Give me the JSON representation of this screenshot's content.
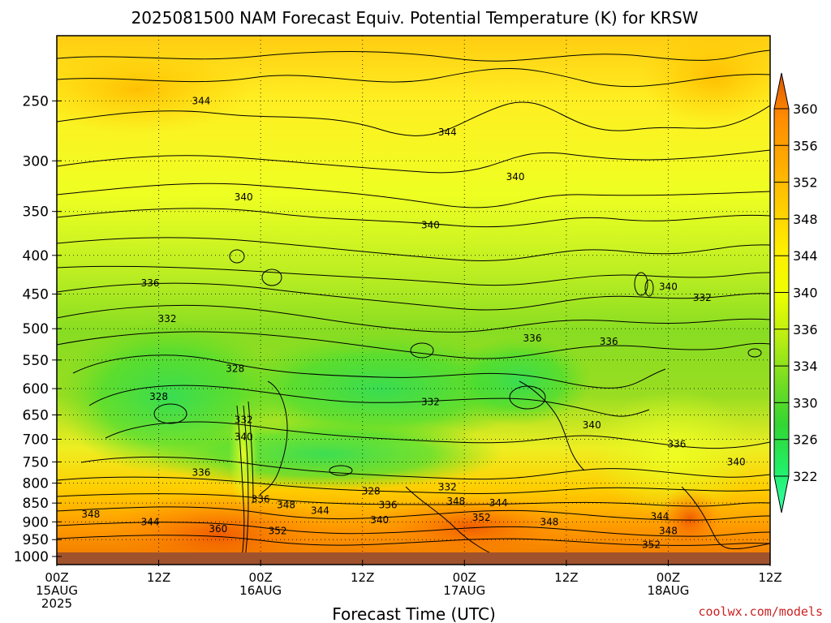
{
  "chart_data": {
    "type": "heatmap",
    "title": "2025081500 NAM Forecast Equiv. Potential Temperature (K) for KRSW",
    "xlabel": "Forecast Time (UTC)",
    "ylabel": "",
    "variable_units": "K",
    "y_axis": {
      "scale": "log",
      "reversed": true,
      "range": [
        1025,
        205
      ],
      "ticks": [
        250,
        300,
        350,
        400,
        450,
        500,
        550,
        600,
        650,
        700,
        750,
        800,
        850,
        900,
        950,
        1000
      ]
    },
    "x_axis": {
      "range_hours": [
        0,
        84
      ],
      "ticks": [
        {
          "hour": 0,
          "lines": [
            "00Z",
            "15AUG",
            "2025"
          ]
        },
        {
          "hour": 12,
          "lines": [
            "12Z"
          ]
        },
        {
          "hour": 24,
          "lines": [
            "00Z",
            "16AUG"
          ]
        },
        {
          "hour": 36,
          "lines": [
            "12Z"
          ]
        },
        {
          "hour": 48,
          "lines": [
            "00Z",
            "17AUG"
          ]
        },
        {
          "hour": 60,
          "lines": [
            "12Z"
          ]
        },
        {
          "hour": 72,
          "lines": [
            "00Z",
            "18AUG"
          ]
        },
        {
          "hour": 84,
          "lines": [
            "12Z"
          ]
        }
      ]
    },
    "grid": true,
    "colorbar": {
      "placement": "right",
      "ticks": [
        322,
        326,
        330,
        334,
        336,
        340,
        344,
        348,
        352,
        356,
        360
      ],
      "colors": [
        "#33ff99",
        "#22e866",
        "#33d633",
        "#77dd22",
        "#bbee11",
        "#eeff00",
        "#ffee00",
        "#ffcc00",
        "#ffaa00",
        "#ff8c00",
        "#ee6600",
        "#cc4400"
      ]
    },
    "contour_labels": [
      {
        "value": "344",
        "hour": 17,
        "p": 250
      },
      {
        "value": "344",
        "hour": 46,
        "p": 275
      },
      {
        "value": "340",
        "hour": 22,
        "p": 335
      },
      {
        "value": "340",
        "hour": 54,
        "p": 315
      },
      {
        "value": "340",
        "hour": 44,
        "p": 365
      },
      {
        "value": "336",
        "hour": 11,
        "p": 435
      },
      {
        "value": "332",
        "hour": 13,
        "p": 485
      },
      {
        "value": "340",
        "hour": 72,
        "p": 440
      },
      {
        "value": "332",
        "hour": 76,
        "p": 455
      },
      {
        "value": "336",
        "hour": 56,
        "p": 515
      },
      {
        "value": "336",
        "hour": 65,
        "p": 520
      },
      {
        "value": "328",
        "hour": 21,
        "p": 565
      },
      {
        "value": "328",
        "hour": 12,
        "p": 615
      },
      {
        "value": "332",
        "hour": 44,
        "p": 625
      },
      {
        "value": "332",
        "hour": 22,
        "p": 660
      },
      {
        "value": "340",
        "hour": 22,
        "p": 695
      },
      {
        "value": "340",
        "hour": 63,
        "p": 670
      },
      {
        "value": "336",
        "hour": 73,
        "p": 710
      },
      {
        "value": "340",
        "hour": 80,
        "p": 750
      },
      {
        "value": "336",
        "hour": 17,
        "p": 775
      },
      {
        "value": "332",
        "hour": 46,
        "p": 810
      },
      {
        "value": "328",
        "hour": 37,
        "p": 820
      },
      {
        "value": "336",
        "hour": 24,
        "p": 840
      },
      {
        "value": "348",
        "hour": 27,
        "p": 855
      },
      {
        "value": "336",
        "hour": 39,
        "p": 855
      },
      {
        "value": "348",
        "hour": 47,
        "p": 845
      },
      {
        "value": "344",
        "hour": 52,
        "p": 850
      },
      {
        "value": "344",
        "hour": 31,
        "p": 870
      },
      {
        "value": "348",
        "hour": 4,
        "p": 880
      },
      {
        "value": "340",
        "hour": 38,
        "p": 895
      },
      {
        "value": "352",
        "hour": 50,
        "p": 888
      },
      {
        "value": "344",
        "hour": 11,
        "p": 900
      },
      {
        "value": "348",
        "hour": 58,
        "p": 900
      },
      {
        "value": "344",
        "hour": 71,
        "p": 885
      },
      {
        "value": "360",
        "hour": 19,
        "p": 920
      },
      {
        "value": "352",
        "hour": 26,
        "p": 925
      },
      {
        "value": "348",
        "hour": 72,
        "p": 925
      },
      {
        "value": "352",
        "hour": 70,
        "p": 965
      }
    ]
  },
  "credit": "coolwx.com/models"
}
